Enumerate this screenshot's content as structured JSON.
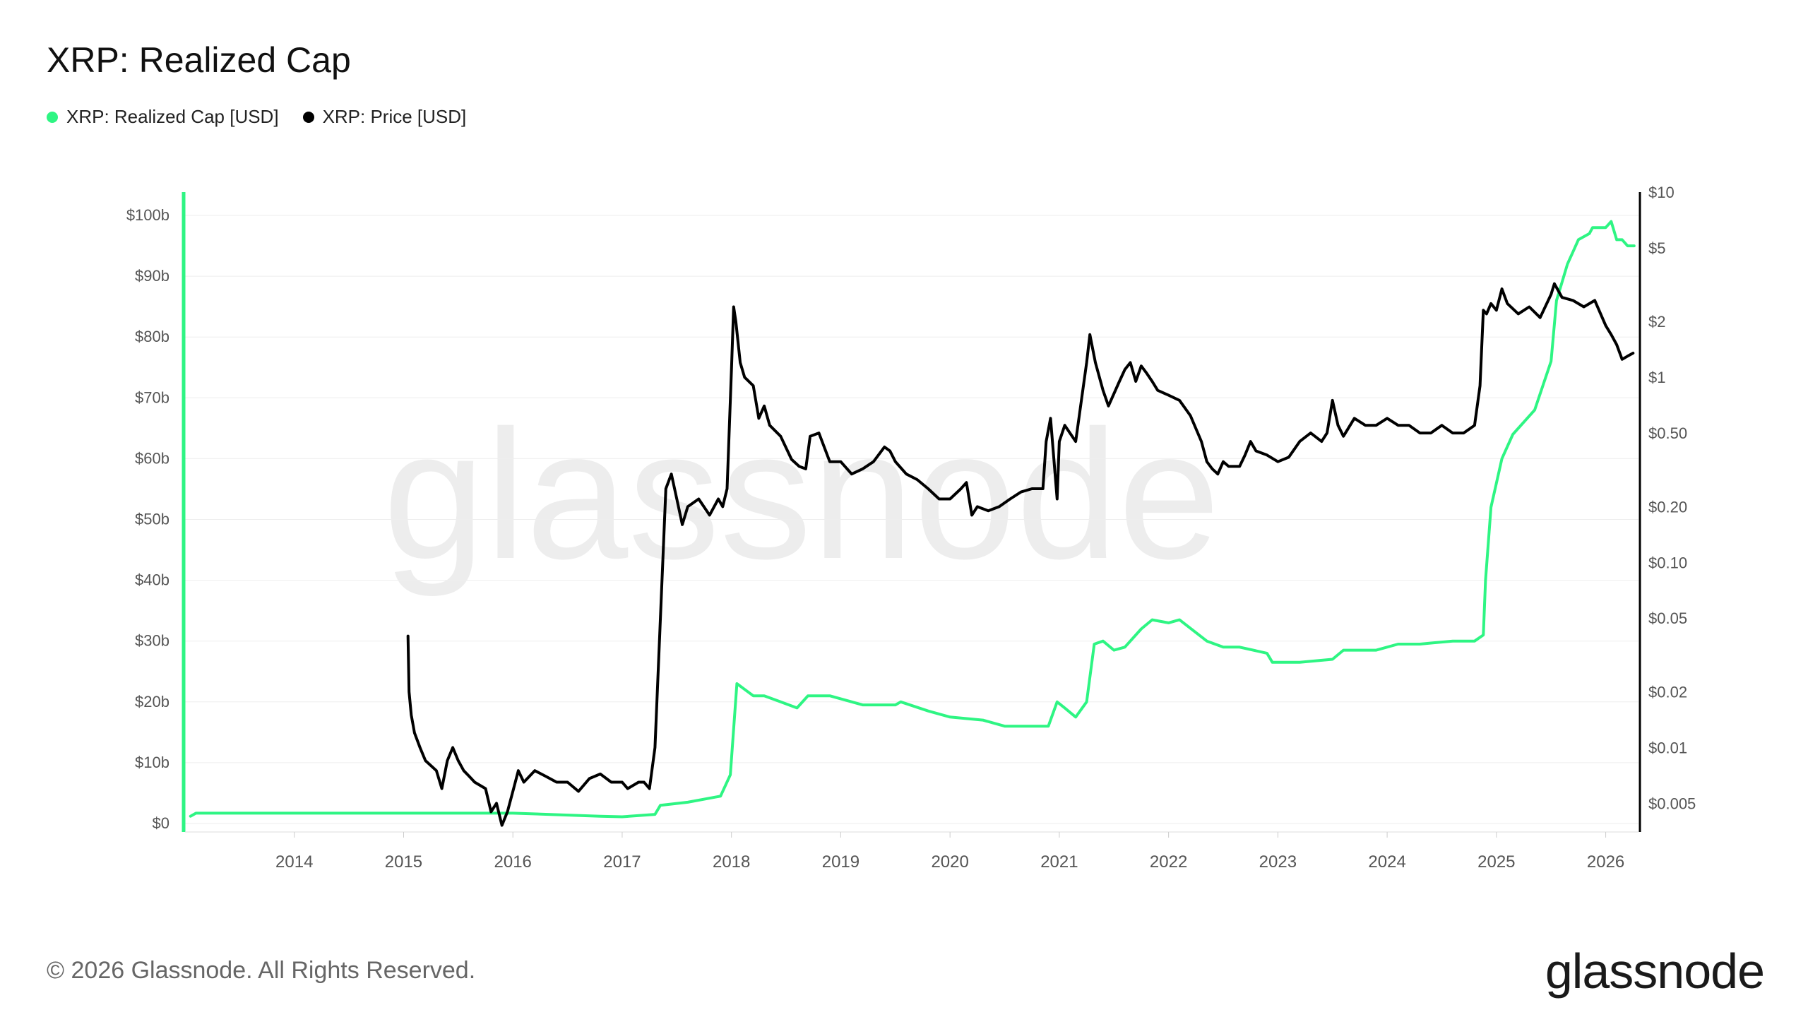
{
  "title": "XRP: Realized Cap",
  "footer": "© 2026 Glassnode. All Rights Reserved.",
  "logo": "glassnode",
  "watermark": "glassnode",
  "colors": {
    "realized_cap": "#2ef583",
    "price": "#000000",
    "grid": "#eeeeee",
    "axis_text": "#555555"
  },
  "chart_data": {
    "type": "line",
    "title": "XRP: Realized Cap",
    "grid": true,
    "legend_placement": "top-left",
    "x_axis": {
      "type": "time",
      "range": [
        2013.0,
        2026.3
      ],
      "tick_labels": [
        "2014",
        "2015",
        "2016",
        "2017",
        "2018",
        "2019",
        "2020",
        "2021",
        "2022",
        "2023",
        "2024",
        "2025",
        "2026"
      ]
    },
    "y_left": {
      "scale": "linear",
      "unit": "USD",
      "range": [
        0,
        100000000000
      ],
      "tick_labels": [
        "$0",
        "$10b",
        "$20b",
        "$30b",
        "$40b",
        "$50b",
        "$60b",
        "$70b",
        "$80b",
        "$90b",
        "$100b"
      ]
    },
    "y_right": {
      "scale": "log",
      "unit": "USD",
      "range": [
        0.0035,
        10
      ],
      "ticks": [
        0.005,
        0.01,
        0.02,
        0.05,
        0.1,
        0.2,
        0.5,
        1,
        2,
        5,
        10
      ],
      "tick_labels": [
        "$0.005",
        "$0.01",
        "$0.02",
        "$0.05",
        "$0.10",
        "$0.20",
        "$0.50",
        "$1",
        "$2",
        "$5",
        "$10"
      ]
    },
    "series": [
      {
        "name": "XRP: Realized Cap [USD]",
        "axis": "left",
        "x": [
          2013.05,
          2013.1,
          2014.0,
          2015.0,
          2016.0,
          2016.8,
          2017.0,
          2017.3,
          2017.35,
          2017.6,
          2017.9,
          2017.99,
          2018.05,
          2018.2,
          2018.3,
          2018.45,
          2018.6,
          2018.7,
          2018.9,
          2019.2,
          2019.5,
          2019.55,
          2019.8,
          2020.0,
          2020.3,
          2020.5,
          2020.8,
          2020.9,
          2020.98,
          2021.05,
          2021.15,
          2021.25,
          2021.32,
          2021.4,
          2021.5,
          2021.6,
          2021.75,
          2021.85,
          2022.0,
          2022.1,
          2022.35,
          2022.5,
          2022.65,
          2022.9,
          2022.95,
          2023.2,
          2023.5,
          2023.6,
          2023.9,
          2024.1,
          2024.3,
          2024.6,
          2024.8,
          2024.88,
          2024.9,
          2024.95,
          2025.05,
          2025.15,
          2025.35,
          2025.5,
          2025.55,
          2025.6,
          2025.65,
          2025.7,
          2025.75,
          2025.85,
          2025.88,
          2026.0,
          2026.05,
          2026.1,
          2026.15,
          2026.2,
          2026.26
        ],
        "values": [
          1200000000.0,
          1700000000.0,
          1700000000.0,
          1700000000.0,
          1700000000.0,
          1200000000.0,
          1100000000.0,
          1500000000.0,
          3000000000.0,
          3500000000.0,
          4500000000.0,
          8000000000.0,
          23000000000.0,
          21000000000.0,
          21000000000.0,
          20000000000.0,
          19000000000.0,
          21000000000.0,
          21000000000.0,
          19500000000.0,
          19500000000.0,
          20000000000.0,
          18500000000.0,
          17500000000.0,
          17000000000.0,
          16000000000.0,
          16000000000.0,
          16000000000.0,
          20000000000.0,
          19000000000.0,
          17500000000.0,
          20000000000.0,
          29500000000.0,
          30000000000.0,
          28500000000.0,
          29000000000.0,
          32000000000.0,
          33500000000.0,
          33000000000.0,
          33500000000.0,
          30000000000.0,
          29000000000.0,
          29000000000.0,
          28000000000.0,
          26500000000.0,
          26500000000.0,
          27000000000.0,
          28500000000.0,
          28500000000.0,
          29500000000.0,
          29500000000.0,
          30000000000.0,
          30000000000.0,
          31000000000.0,
          40000000000.0,
          52000000000.0,
          60000000000.0,
          64000000000.0,
          68000000000.0,
          76000000000.0,
          86000000000.0,
          89000000000.0,
          92000000000.0,
          94000000000.0,
          96000000000.0,
          97000000000.0,
          98000000000.0,
          98000000000.0,
          99000000000.0,
          96000000000.0,
          96000000000.0,
          95000000000.0,
          95000000000.0
        ]
      },
      {
        "name": "XRP: Price [USD]",
        "axis": "right",
        "x": [
          2015.04,
          2015.05,
          2015.07,
          2015.1,
          2015.15,
          2015.2,
          2015.3,
          2015.35,
          2015.4,
          2015.45,
          2015.5,
          2015.55,
          2015.6,
          2015.65,
          2015.75,
          2015.8,
          2015.85,
          2015.9,
          2015.95,
          2016.0,
          2016.05,
          2016.1,
          2016.2,
          2016.3,
          2016.4,
          2016.5,
          2016.6,
          2016.7,
          2016.8,
          2016.9,
          2017.0,
          2017.05,
          2017.15,
          2017.2,
          2017.25,
          2017.3,
          2017.35,
          2017.4,
          2017.45,
          2017.5,
          2017.55,
          2017.6,
          2017.7,
          2017.8,
          2017.88,
          2017.92,
          2017.96,
          2018.0,
          2018.02,
          2018.04,
          2018.08,
          2018.12,
          2018.2,
          2018.25,
          2018.3,
          2018.35,
          2018.45,
          2018.55,
          2018.62,
          2018.68,
          2018.72,
          2018.8,
          2018.9,
          2019.0,
          2019.1,
          2019.2,
          2019.3,
          2019.4,
          2019.45,
          2019.5,
          2019.6,
          2019.7,
          2019.8,
          2019.9,
          2020.0,
          2020.1,
          2020.15,
          2020.2,
          2020.25,
          2020.35,
          2020.45,
          2020.55,
          2020.65,
          2020.75,
          2020.85,
          2020.88,
          2020.92,
          2020.98,
          2021.0,
          2021.05,
          2021.15,
          2021.25,
          2021.28,
          2021.33,
          2021.4,
          2021.45,
          2021.55,
          2021.6,
          2021.65,
          2021.7,
          2021.75,
          2021.8,
          2021.85,
          2021.9,
          2022.0,
          2022.1,
          2022.2,
          2022.3,
          2022.35,
          2022.4,
          2022.45,
          2022.5,
          2022.55,
          2022.65,
          2022.7,
          2022.75,
          2022.8,
          2022.9,
          2023.0,
          2023.1,
          2023.2,
          2023.3,
          2023.4,
          2023.45,
          2023.5,
          2023.55,
          2023.6,
          2023.7,
          2023.8,
          2023.9,
          2024.0,
          2024.1,
          2024.2,
          2024.3,
          2024.4,
          2024.5,
          2024.6,
          2024.7,
          2024.8,
          2024.85,
          2024.88,
          2024.91,
          2024.95,
          2025.0,
          2025.05,
          2025.1,
          2025.2,
          2025.3,
          2025.4,
          2025.5,
          2025.53,
          2025.6,
          2025.7,
          2025.8,
          2025.9,
          2026.0,
          2026.05,
          2026.1,
          2026.15,
          2026.2,
          2026.25
        ],
        "values": [
          0.04,
          0.02,
          0.015,
          0.012,
          0.01,
          0.0085,
          0.0075,
          0.006,
          0.0085,
          0.01,
          0.0085,
          0.0075,
          0.007,
          0.0065,
          0.006,
          0.0045,
          0.005,
          0.0038,
          0.0045,
          0.0058,
          0.0075,
          0.0065,
          0.0075,
          0.007,
          0.0065,
          0.0065,
          0.0058,
          0.0068,
          0.0072,
          0.0065,
          0.0065,
          0.006,
          0.0065,
          0.0065,
          0.006,
          0.01,
          0.05,
          0.25,
          0.3,
          0.22,
          0.16,
          0.2,
          0.22,
          0.18,
          0.22,
          0.2,
          0.25,
          1.1,
          2.4,
          2.0,
          1.2,
          1.0,
          0.9,
          0.6,
          0.7,
          0.55,
          0.48,
          0.36,
          0.33,
          0.32,
          0.48,
          0.5,
          0.35,
          0.35,
          0.3,
          0.32,
          0.35,
          0.42,
          0.4,
          0.35,
          0.3,
          0.28,
          0.25,
          0.22,
          0.22,
          0.25,
          0.27,
          0.18,
          0.2,
          0.19,
          0.2,
          0.22,
          0.24,
          0.25,
          0.25,
          0.45,
          0.6,
          0.22,
          0.45,
          0.55,
          0.45,
          1.2,
          1.7,
          1.2,
          0.85,
          0.7,
          0.95,
          1.1,
          1.2,
          0.95,
          1.15,
          1.05,
          0.95,
          0.85,
          0.8,
          0.75,
          0.62,
          0.45,
          0.35,
          0.32,
          0.3,
          0.35,
          0.33,
          0.33,
          0.38,
          0.45,
          0.4,
          0.38,
          0.35,
          0.37,
          0.45,
          0.5,
          0.45,
          0.5,
          0.75,
          0.55,
          0.48,
          0.6,
          0.55,
          0.55,
          0.6,
          0.55,
          0.55,
          0.5,
          0.5,
          0.55,
          0.5,
          0.5,
          0.55,
          0.9,
          2.3,
          2.2,
          2.5,
          2.3,
          3.0,
          2.5,
          2.2,
          2.4,
          2.1,
          2.8,
          3.2,
          2.7,
          2.6,
          2.4,
          2.6,
          1.9,
          1.7,
          1.5,
          1.25,
          1.3,
          1.35
        ],
        "peak_note": "peak near 2018.02 (~$2.4)"
      }
    ]
  }
}
